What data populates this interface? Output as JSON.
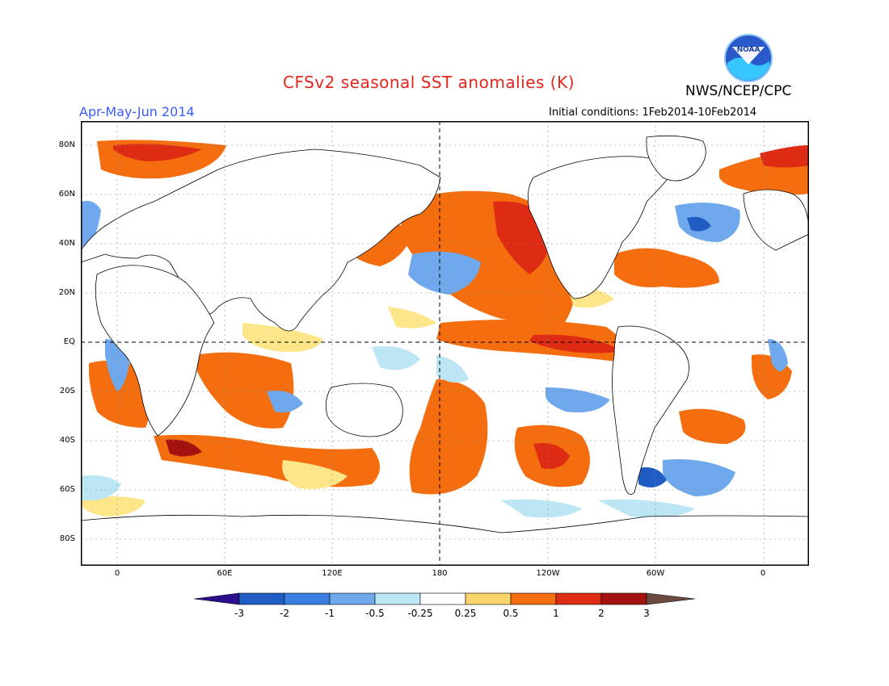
{
  "header": {
    "title": "CFSv2 seasonal SST anomalies (K)",
    "organization": "NWS/NCEP/CPC",
    "season": "Apr-May-Jun 2014",
    "initial_conditions": "Initial conditions: 1Feb2014-10Feb2014",
    "logo_text": "NOAA"
  },
  "colors": {
    "title": "#e3261c",
    "season": "#3a5cff",
    "neg3": "#2d0f8c",
    "neg2": "#1f5cc4",
    "neg1": "#3a7fe0",
    "neg05": "#6fa8ec",
    "neg025": "#bde6f5",
    "neutral": "#ffffff",
    "pos025": "#fde68a",
    "pos05": "#f9d56b",
    "pos1": "#f46d0e",
    "pos2": "#de2c14",
    "pos3": "#a3120e",
    "ext": "#6a4b3e"
  },
  "map": {
    "lat_labels": [
      "80N",
      "60N",
      "40N",
      "20N",
      "EQ",
      "20S",
      "40S",
      "60S",
      "80S"
    ],
    "lon_labels": [
      "0",
      "60E",
      "120E",
      "180",
      "120W",
      "60W",
      "0"
    ]
  },
  "colorbar": {
    "labels": [
      "-3",
      "-2",
      "-1",
      "-0.5",
      "-0.25",
      "0.25",
      "0.5",
      "1",
      "2",
      "3"
    ]
  }
}
